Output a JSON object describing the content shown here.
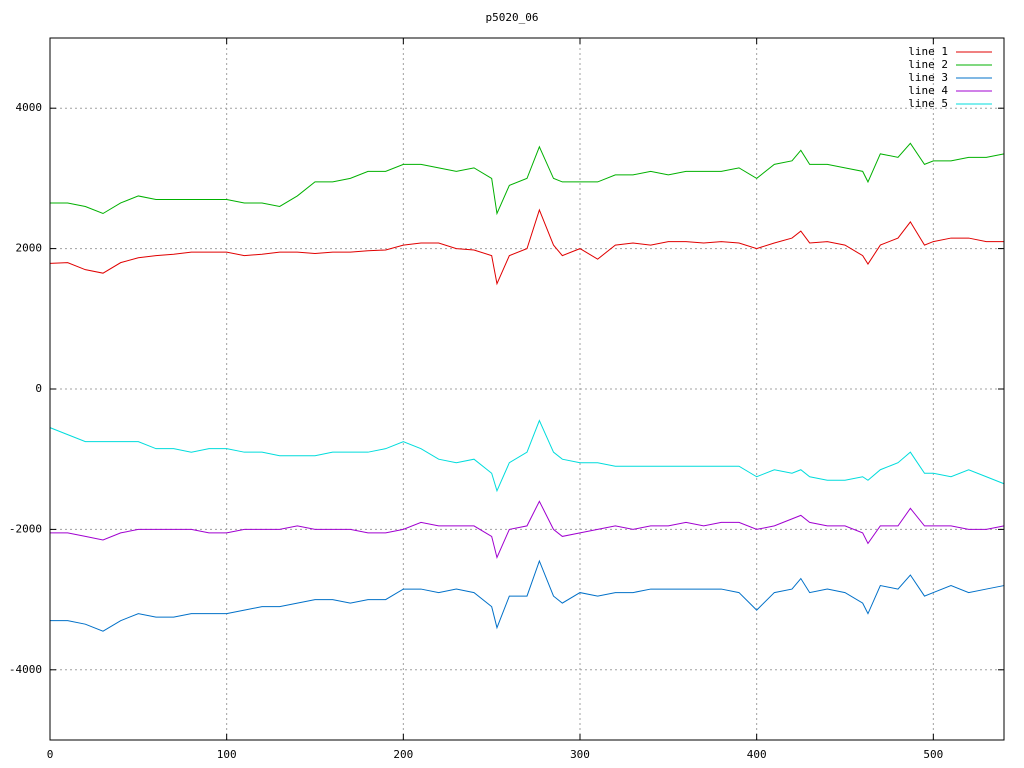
{
  "chart_data": {
    "type": "line",
    "title": "p5020_06",
    "x": [
      0,
      10,
      20,
      30,
      40,
      50,
      60,
      70,
      80,
      90,
      100,
      110,
      120,
      130,
      140,
      150,
      160,
      170,
      180,
      190,
      200,
      210,
      220,
      230,
      240,
      250,
      253,
      260,
      270,
      277,
      285,
      290,
      300,
      310,
      320,
      330,
      340,
      350,
      360,
      370,
      380,
      390,
      400,
      410,
      420,
      425,
      430,
      440,
      450,
      460,
      463,
      470,
      480,
      487,
      495,
      500,
      510,
      520,
      530,
      540
    ],
    "series": [
      {
        "name": "line 1",
        "color": "#e00000",
        "values": [
          1790,
          1800,
          1700,
          1650,
          1800,
          1870,
          1900,
          1920,
          1950,
          1950,
          1950,
          1900,
          1920,
          1950,
          1950,
          1930,
          1950,
          1950,
          1970,
          1980,
          2050,
          2080,
          2080,
          2000,
          1980,
          1900,
          1500,
          1900,
          2000,
          2550,
          2050,
          1900,
          2000,
          1850,
          2050,
          2080,
          2050,
          2100,
          2100,
          2080,
          2100,
          2080,
          2000,
          2080,
          2150,
          2250,
          2080,
          2100,
          2050,
          1900,
          1780,
          2050,
          2150,
          2380,
          2050,
          2100,
          2150,
          2150,
          2100,
          2100
        ]
      },
      {
        "name": "line 2",
        "color": "#00b000",
        "values": [
          2650,
          2650,
          2600,
          2500,
          2650,
          2750,
          2700,
          2700,
          2700,
          2700,
          2700,
          2650,
          2650,
          2600,
          2750,
          2950,
          2950,
          3000,
          3100,
          3100,
          3200,
          3200,
          3150,
          3100,
          3150,
          3000,
          2500,
          2900,
          3000,
          3450,
          3000,
          2950,
          2950,
          2950,
          3050,
          3050,
          3100,
          3050,
          3100,
          3100,
          3100,
          3150,
          3000,
          3200,
          3250,
          3400,
          3200,
          3200,
          3150,
          3100,
          2950,
          3350,
          3300,
          3500,
          3200,
          3250,
          3250,
          3300,
          3300,
          3350
        ]
      },
      {
        "name": "line 3",
        "color": "#0070c8",
        "values": [
          -3300,
          -3300,
          -3350,
          -3450,
          -3300,
          -3200,
          -3250,
          -3250,
          -3200,
          -3200,
          -3200,
          -3150,
          -3100,
          -3100,
          -3050,
          -3000,
          -3000,
          -3050,
          -3000,
          -3000,
          -2850,
          -2850,
          -2900,
          -2850,
          -2900,
          -3100,
          -3400,
          -2950,
          -2950,
          -2450,
          -2950,
          -3050,
          -2900,
          -2950,
          -2900,
          -2900,
          -2850,
          -2850,
          -2850,
          -2850,
          -2850,
          -2900,
          -3150,
          -2900,
          -2850,
          -2700,
          -2900,
          -2850,
          -2900,
          -3050,
          -3200,
          -2800,
          -2850,
          -2650,
          -2950,
          -2900,
          -2800,
          -2900,
          -2850,
          -2800
        ]
      },
      {
        "name": "line 4",
        "color": "#a000d0",
        "values": [
          -2050,
          -2050,
          -2100,
          -2150,
          -2050,
          -2000,
          -2000,
          -2000,
          -2000,
          -2050,
          -2050,
          -2000,
          -2000,
          -2000,
          -1950,
          -2000,
          -2000,
          -2000,
          -2050,
          -2050,
          -2000,
          -1900,
          -1950,
          -1950,
          -1950,
          -2100,
          -2400,
          -2000,
          -1950,
          -1600,
          -2000,
          -2100,
          -2050,
          -2000,
          -1950,
          -2000,
          -1950,
          -1950,
          -1900,
          -1950,
          -1900,
          -1900,
          -2000,
          -1950,
          -1850,
          -1800,
          -1900,
          -1950,
          -1950,
          -2050,
          -2200,
          -1950,
          -1950,
          -1700,
          -1950,
          -1950,
          -1950,
          -2000,
          -2000,
          -1950
        ]
      },
      {
        "name": "line 5",
        "color": "#00dcdc",
        "values": [
          -550,
          -650,
          -750,
          -750,
          -750,
          -750,
          -850,
          -850,
          -900,
          -850,
          -850,
          -900,
          -900,
          -950,
          -950,
          -950,
          -900,
          -900,
          -900,
          -850,
          -750,
          -850,
          -1000,
          -1050,
          -1000,
          -1200,
          -1450,
          -1050,
          -900,
          -450,
          -900,
          -1000,
          -1050,
          -1050,
          -1100,
          -1100,
          -1100,
          -1100,
          -1100,
          -1100,
          -1100,
          -1100,
          -1250,
          -1150,
          -1200,
          -1150,
          -1250,
          -1300,
          -1300,
          -1250,
          -1300,
          -1150,
          -1050,
          -900,
          -1200,
          -1200,
          -1250,
          -1150,
          -1250,
          -1350
        ]
      }
    ],
    "xlim": [
      0,
      540
    ],
    "xticks": [
      0,
      100,
      200,
      300,
      400,
      500
    ],
    "ylim": [
      -5000,
      5000
    ],
    "yticks": [
      -4000,
      -2000,
      0,
      2000,
      4000
    ],
    "grid": true,
    "legend": "top-right"
  }
}
